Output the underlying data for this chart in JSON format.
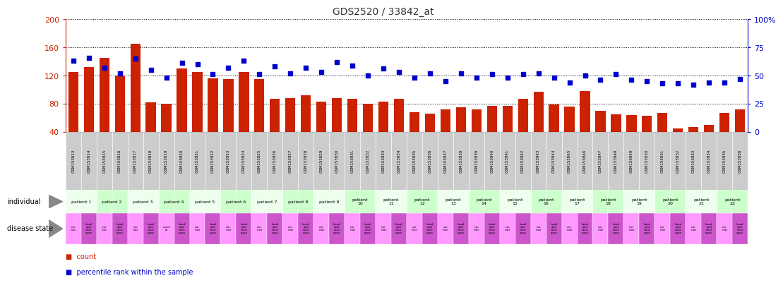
{
  "title": "GDS2520 / 33842_at",
  "samples": [
    "GSM153813",
    "GSM153814",
    "GSM153815",
    "GSM153816",
    "GSM153817",
    "GSM153818",
    "GSM153819",
    "GSM153820",
    "GSM153821",
    "GSM153822",
    "GSM153823",
    "GSM153824",
    "GSM153825",
    "GSM153826",
    "GSM153827",
    "GSM153828",
    "GSM153829",
    "GSM153830",
    "GSM153831",
    "GSM153832",
    "GSM153833",
    "GSM153834",
    "GSM153835",
    "GSM153836",
    "GSM153837",
    "GSM153838",
    "GSM153839",
    "GSM153840",
    "GSM153841",
    "GSM153842",
    "GSM153843",
    "GSM153844",
    "GSM153845",
    "GSM153846",
    "GSM153847",
    "GSM153848",
    "GSM153849",
    "GSM153850",
    "GSM153851",
    "GSM153852",
    "GSM153853",
    "GSM153854",
    "GSM153855",
    "GSM153856"
  ],
  "counts": [
    125,
    132,
    145,
    120,
    165,
    82,
    80,
    130,
    125,
    116,
    115,
    125,
    115,
    87,
    88,
    92,
    83,
    88,
    87,
    80,
    83,
    87,
    68,
    66,
    72,
    75,
    72,
    77,
    77,
    87,
    97,
    79,
    76,
    98,
    70,
    65,
    64,
    63,
    67,
    45,
    47,
    50,
    67,
    72
  ],
  "percentiles": [
    63,
    66,
    57,
    52,
    65,
    55,
    48,
    61,
    60,
    51,
    57,
    63,
    51,
    58,
    52,
    57,
    53,
    62,
    59,
    50,
    56,
    53,
    48,
    52,
    45,
    52,
    48,
    51,
    48,
    51,
    52,
    48,
    44,
    50,
    46,
    51,
    46,
    45,
    43,
    43,
    42,
    44,
    44,
    47
  ],
  "individuals": [
    "patient 1",
    "patient 1",
    "patient 2",
    "patient 2",
    "patient 3",
    "patient 3",
    "patient 4",
    "patient 4",
    "patient 5",
    "patient 5",
    "patient 6",
    "patient 6",
    "patient 7",
    "patient 7",
    "patient 8",
    "patient 8",
    "patient 9",
    "patient 9",
    "patient\n10",
    "patient\n10",
    "patient\n11",
    "patient\n11",
    "patient\n12",
    "patient\n12",
    "patient\n13",
    "patient\n13",
    "patient\n14",
    "patient\n14",
    "patient\n15",
    "patient\n15",
    "patient\n16",
    "patient\n16",
    "patient\n17",
    "patient\n17",
    "patient\n18",
    "patient\n18",
    "patient\n19",
    "patient\n19",
    "patient\n20",
    "patient\n20",
    "patient\n21",
    "patient\n21",
    "patient\n22",
    "patient\n22"
  ],
  "patient_colors": [
    "#EEFFEE",
    "#EEFFEE",
    "#CCFFCC",
    "#CCFFCC",
    "#EEFFEE",
    "#EEFFEE",
    "#CCFFCC",
    "#CCFFCC",
    "#EEFFEE",
    "#EEFFEE",
    "#CCFFCC",
    "#CCFFCC",
    "#EEFFEE",
    "#EEFFEE",
    "#CCFFCC",
    "#CCFFCC",
    "#EEFFEE",
    "#EEFFEE",
    "#CCFFCC",
    "#CCFFCC",
    "#EEFFEE",
    "#EEFFEE",
    "#CCFFCC",
    "#CCFFCC",
    "#EEFFEE",
    "#EEFFEE",
    "#CCFFCC",
    "#CCFFCC",
    "#EEFFEE",
    "#EEFFEE",
    "#CCFFCC",
    "#CCFFCC",
    "#EEFFEE",
    "#EEFFEE",
    "#CCFFCC",
    "#CCFFCC",
    "#EEFFEE",
    "#EEFFEE",
    "#CCFFCC",
    "#CCFFCC",
    "#EEFFEE",
    "#EEFFEE",
    "#CCFFCC",
    "#CCFFCC"
  ],
  "disease_labels": [
    "nor\nmal",
    "head\nand\nneck\nsqua",
    "nor\nmal",
    "head\nand\nneck\nsqua",
    "nor\nmal",
    "head\nand\nneck\nsqua",
    "norm\nal",
    "head\nand\nneck\nsqua",
    "nor\nmal",
    "head\nand\nneck\nsqua",
    "nor\nmal",
    "head\nand\nneck\nsqua",
    "nor\nmal",
    "head\nand\nneck\nsqua",
    "nor\nmal",
    "head\nand\nneck\nsqua",
    "nor\nmal",
    "head\nand\nneck\nsqua",
    "nor\nmal",
    "head\nand\nneck\nsqua",
    "nor\nmal",
    "head\nand\nneck\nsqua",
    "nor\nmal",
    "head\nand\nneck\nsqua",
    "nor\nmal",
    "head\nand\nneck\nsqua",
    "nor\nmal",
    "head\nand\nneck\nsqua",
    "nor\nmal",
    "head\nand\nneck\nsqua",
    "nor\nmal",
    "head\nand\nneck\nsqua",
    "nor\nmal",
    "head\nand\nneck\nsqua",
    "nor\nmal",
    "head\nand\nneck\nsqua",
    "nor\nmal",
    "head\nand\nneck\nsqua",
    "nor\nmal",
    "head\nand\nneck\nsqua",
    "nor\nmal",
    "head\nand\nneck\nsqua",
    "nor\nmal",
    "head\nand\nneck\nsqua"
  ],
  "disease_colors": [
    "#FF99FF",
    "#CC55CC",
    "#FF99FF",
    "#CC55CC",
    "#FF99FF",
    "#CC55CC",
    "#FF99FF",
    "#CC55CC",
    "#FF99FF",
    "#CC55CC",
    "#FF99FF",
    "#CC55CC",
    "#FF99FF",
    "#CC55CC",
    "#FF99FF",
    "#CC55CC",
    "#FF99FF",
    "#CC55CC",
    "#FF99FF",
    "#CC55CC",
    "#FF99FF",
    "#CC55CC",
    "#FF99FF",
    "#CC55CC",
    "#FF99FF",
    "#CC55CC",
    "#FF99FF",
    "#CC55CC",
    "#FF99FF",
    "#CC55CC",
    "#FF99FF",
    "#CC55CC",
    "#FF99FF",
    "#CC55CC",
    "#FF99FF",
    "#CC55CC",
    "#FF99FF",
    "#CC55CC",
    "#FF99FF",
    "#CC55CC",
    "#FF99FF",
    "#CC55CC",
    "#FF99FF",
    "#CC55CC"
  ],
  "bar_color": "#CC2200",
  "dot_color": "#0000CC",
  "ylim_left": [
    40,
    200
  ],
  "ylim_right": [
    0,
    100
  ],
  "yticks_left": [
    40,
    80,
    120,
    160,
    200
  ],
  "yticks_right": [
    0,
    25,
    50,
    75,
    100
  ],
  "ytick_labels_right": [
    "0",
    "25",
    "50",
    "75",
    "100%"
  ],
  "left_axis_color": "#CC2200",
  "right_axis_color": "#0000CC",
  "sample_bg": "#CCCCCC"
}
